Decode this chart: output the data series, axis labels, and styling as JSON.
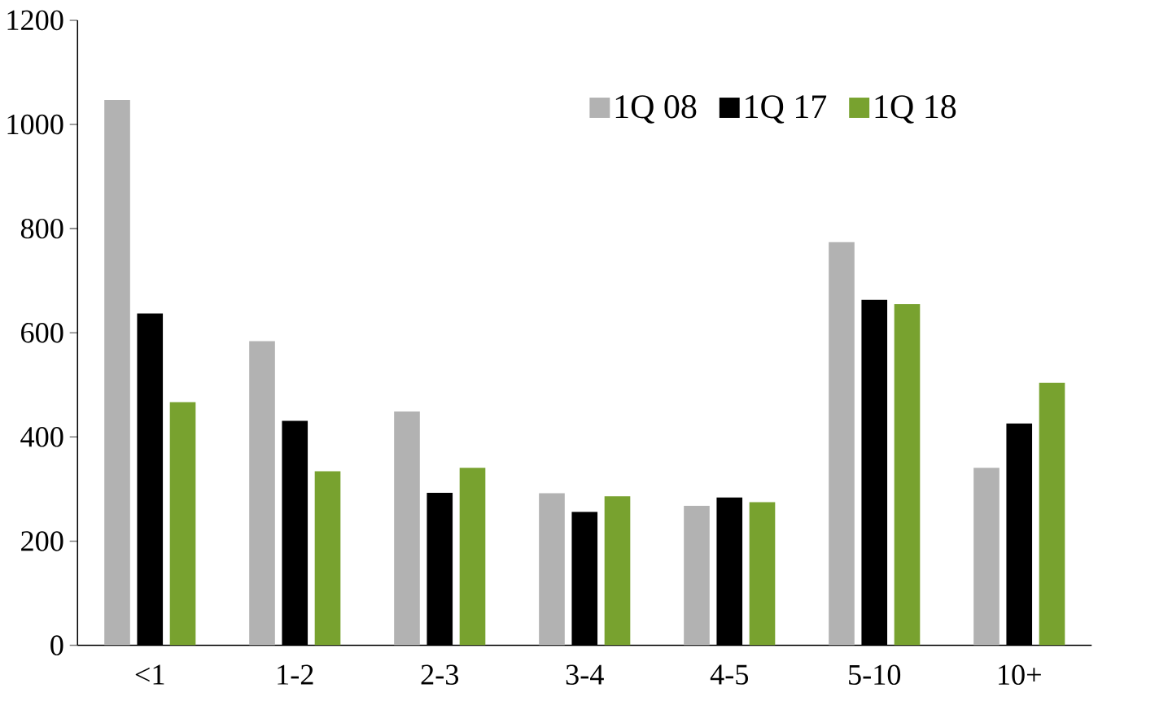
{
  "chart_data": {
    "type": "bar",
    "categories": [
      "<1",
      "1-2",
      "2-3",
      "3-4",
      "4-5",
      "5-10",
      "10+"
    ],
    "series": [
      {
        "name": "1Q 08",
        "color": "#b2b2b2",
        "values": [
          1047,
          584,
          449,
          292,
          268,
          774,
          341
        ]
      },
      {
        "name": "1Q 17",
        "color": "#000000",
        "values": [
          637,
          431,
          293,
          256,
          284,
          663,
          426
        ]
      },
      {
        "name": "1Q 18",
        "color": "#78a22f",
        "values": [
          467,
          334,
          341,
          286,
          275,
          655,
          504
        ]
      }
    ],
    "ylim": [
      0,
      1200
    ],
    "yticks": [
      0,
      200,
      400,
      600,
      800,
      1000,
      1200
    ],
    "grid": false,
    "legend": "top right"
  }
}
